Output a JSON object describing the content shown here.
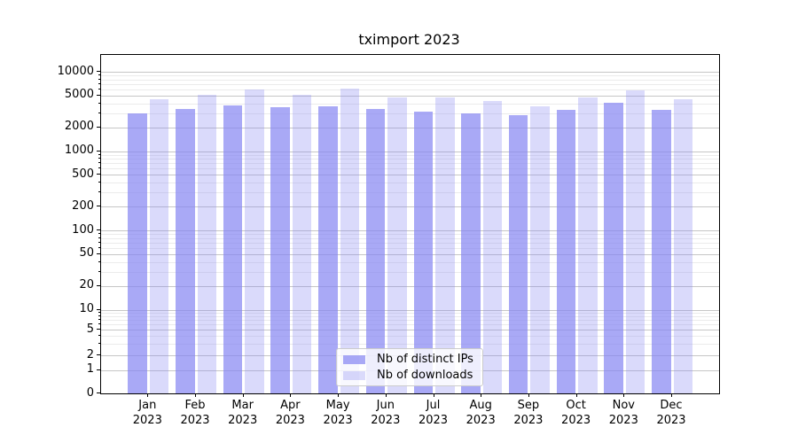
{
  "title": "tximport 2023",
  "colors": {
    "bar_distinct_ips": "rgba(133,133,242,0.7)",
    "bar_downloads": "rgba(133,133,242,0.3)",
    "grid_major": "#c6c6c6",
    "grid_minor": "#ebebeb",
    "axis": "#000000",
    "legend_border": "#cccccc"
  },
  "chart_data": {
    "type": "bar",
    "title": "tximport 2023",
    "categories": [
      "Jan 2023",
      "Feb 2023",
      "Mar 2023",
      "Apr 2023",
      "May 2023",
      "Jun 2023",
      "Jul 2023",
      "Aug 2023",
      "Sep 2023",
      "Oct 2023",
      "Nov 2023",
      "Dec 2023"
    ],
    "series": [
      {
        "name": "Nb of distinct IPs",
        "values": [
          3000,
          3400,
          3850,
          3600,
          3750,
          3450,
          3200,
          3050,
          2850,
          3350,
          4150,
          3350
        ]
      },
      {
        "name": "Nb of downloads",
        "values": [
          4600,
          5200,
          6000,
          5200,
          6200,
          4850,
          4750,
          4350,
          3700,
          4850,
          5900,
          4550
        ]
      }
    ],
    "yscale": "symlog",
    "y_ticks": [
      10000,
      5000,
      2000,
      1000,
      500,
      200,
      100,
      50,
      20,
      10,
      5,
      2,
      1,
      0
    ],
    "y_minor_ticks": [
      3,
      4,
      6,
      7,
      8,
      9,
      30,
      40,
      60,
      70,
      80,
      90,
      300,
      400,
      600,
      700,
      800,
      900,
      3000,
      4000,
      6000,
      7000,
      8000,
      9000
    ],
    "ylim": [
      0,
      16000
    ],
    "grid": "both",
    "legend_position": "lower center"
  }
}
